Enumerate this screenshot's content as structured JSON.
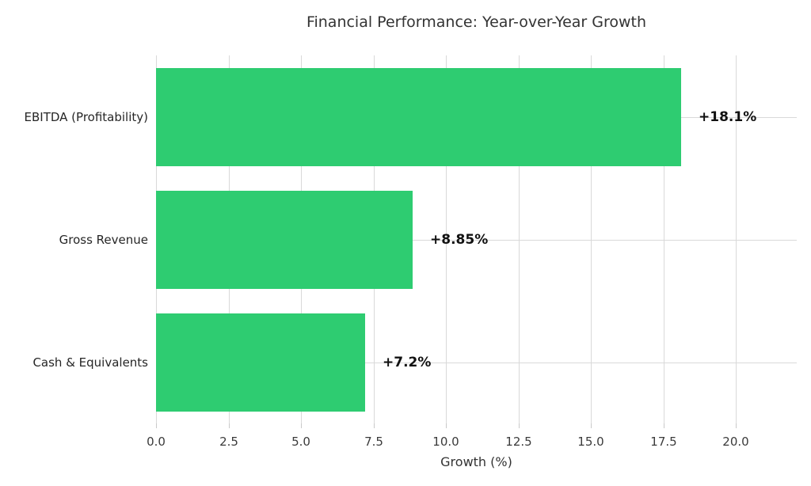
{
  "chart_data": {
    "type": "bar",
    "orientation": "horizontal",
    "title": "Financial Performance: Year-over-Year Growth",
    "xlabel": "Growth (%)",
    "categories": [
      "EBITDA (Profitability)",
      "Gross Revenue",
      "Cash & Equivalents"
    ],
    "values": [
      18.1,
      8.85,
      7.2
    ],
    "value_labels": [
      "+18.1%",
      "+8.85%",
      "+7.2%"
    ],
    "xlim": [
      0,
      22.1
    ],
    "xticks": [
      0,
      2.5,
      5,
      7.5,
      10,
      12.5,
      15,
      17.5,
      20
    ],
    "xtick_labels": [
      "0.0",
      "2.5",
      "5.0",
      "7.5",
      "10.0",
      "12.5",
      "15.0",
      "17.5",
      "20.0"
    ],
    "grid": true,
    "legend": false,
    "colors": {
      "bar": "#2ecc71",
      "gridline": "#d9d9d9",
      "background": "#ffffff",
      "title_text": "#333333",
      "tick_text": "#3b3b3b",
      "value_text": "#111111"
    }
  }
}
